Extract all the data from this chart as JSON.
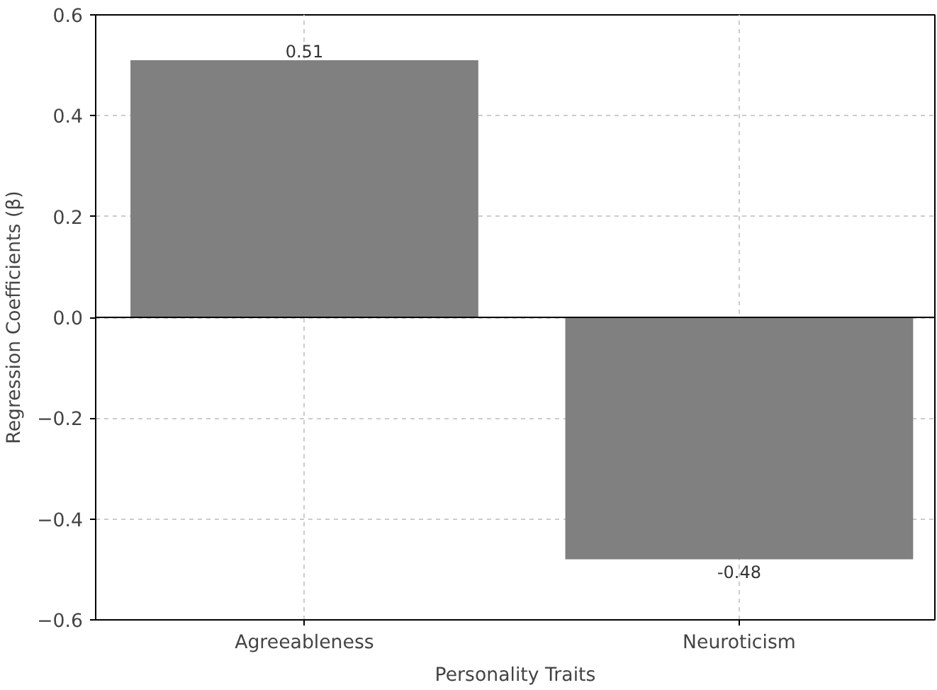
{
  "chart_data": {
    "type": "bar",
    "xlabel": "Personality Traits",
    "ylabel": "Regression Coefficients (β)",
    "categories": [
      "Agreeableness",
      "Neuroticism"
    ],
    "values": [
      0.51,
      -0.48
    ],
    "color": "#808080",
    "data_labels": true,
    "ylim": [
      -0.6,
      0.6
    ],
    "yticks": [
      {
        "value": -0.6,
        "label": "−0.6"
      },
      {
        "value": -0.4,
        "label": "−0.4"
      },
      {
        "value": -0.2,
        "label": "−0.2"
      },
      {
        "value": 0,
        "label": "0.0"
      },
      0.2,
      0.4,
      0.6
    ],
    "ref_lines": [
      {
        "axis": "y",
        "value": 0,
        "color": "#000000"
      }
    ],
    "grid": true
  }
}
